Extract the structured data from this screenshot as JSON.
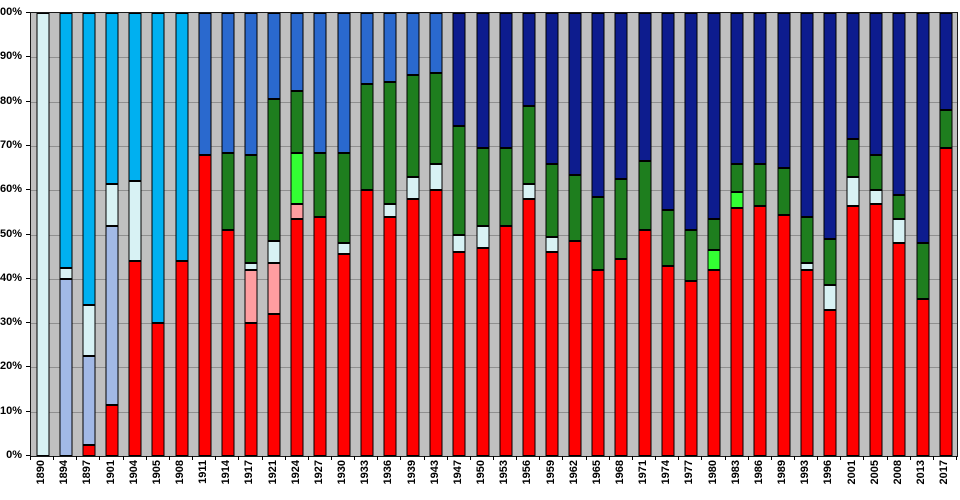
{
  "chart_data": {
    "type": "bar",
    "variant": "100%-stacked-column",
    "title": "",
    "xlabel": "",
    "ylabel": "",
    "ylim": [
      0,
      100
    ],
    "ytick_step": 10,
    "ytick_labels": [
      "0%",
      "10%",
      "20%",
      "30%",
      "40%",
      "50%",
      "60%",
      "70%",
      "80%",
      "90%",
      "100%"
    ],
    "grid": true,
    "legend": "none",
    "plot_bg": "#C0C0C0",
    "gridline_color": "#8f8f8f",
    "axis_color": "#1a1a1a",
    "palette": {
      "red": "#FF0000",
      "pink": "#FF9DA0",
      "light_blue": "#A2B9E6",
      "pale_cyan": "#D8F2F4",
      "cyan": "#00B0F0",
      "medium_blue": "#2A69CE",
      "dark_blue": "#0D1C8E",
      "green": "#1E7E1E",
      "bright_green": "#33FF33"
    },
    "categories": [
      "1890",
      "1894",
      "1897",
      "1901",
      "1904",
      "1905",
      "1908",
      "1911",
      "1914",
      "1917",
      "1921",
      "1924",
      "1927",
      "1930",
      "1933",
      "1936",
      "1939",
      "1943",
      "1947",
      "1950",
      "1953",
      "1956",
      "1959",
      "1962",
      "1965",
      "1968",
      "1971",
      "1974",
      "1977",
      "1980",
      "1983",
      "1986",
      "1989",
      "1993",
      "1996",
      "2001",
      "2005",
      "2008",
      "2013",
      "2017"
    ],
    "bars": [
      {
        "year": "1890",
        "segments": [
          [
            "pale_cyan",
            100
          ]
        ]
      },
      {
        "year": "1894",
        "segments": [
          [
            "light_blue",
            40
          ],
          [
            "pale_cyan",
            2.5
          ],
          [
            "cyan",
            57.5
          ]
        ]
      },
      {
        "year": "1897",
        "segments": [
          [
            "red",
            2.5
          ],
          [
            "light_blue",
            20
          ],
          [
            "pale_cyan",
            11.5
          ],
          [
            "cyan",
            66
          ]
        ]
      },
      {
        "year": "1901",
        "segments": [
          [
            "red",
            11.5
          ],
          [
            "light_blue",
            40.5
          ],
          [
            "pale_cyan",
            9.5
          ],
          [
            "cyan",
            38.5
          ]
        ]
      },
      {
        "year": "1904",
        "segments": [
          [
            "red",
            44
          ],
          [
            "pale_cyan",
            18
          ],
          [
            "cyan",
            38
          ]
        ]
      },
      {
        "year": "1905",
        "segments": [
          [
            "red",
            30
          ],
          [
            "cyan",
            70
          ]
        ]
      },
      {
        "year": "1908",
        "segments": [
          [
            "red",
            44
          ],
          [
            "cyan",
            56
          ]
        ]
      },
      {
        "year": "1911",
        "segments": [
          [
            "red",
            68
          ],
          [
            "medium_blue",
            32
          ]
        ]
      },
      {
        "year": "1914",
        "segments": [
          [
            "red",
            51
          ],
          [
            "green",
            17.5
          ],
          [
            "medium_blue",
            31.5
          ]
        ]
      },
      {
        "year": "1917",
        "segments": [
          [
            "red",
            30
          ],
          [
            "pink",
            12
          ],
          [
            "pale_cyan",
            1.5
          ],
          [
            "green",
            24.5
          ],
          [
            "medium_blue",
            32
          ]
        ]
      },
      {
        "year": "1921",
        "segments": [
          [
            "red",
            32
          ],
          [
            "pink",
            11.5
          ],
          [
            "pale_cyan",
            5
          ],
          [
            "green",
            32
          ],
          [
            "medium_blue",
            19.5
          ]
        ]
      },
      {
        "year": "1924",
        "segments": [
          [
            "red",
            53.5
          ],
          [
            "pink",
            3.5
          ],
          [
            "bright_green",
            11.5
          ],
          [
            "green",
            14
          ],
          [
            "medium_blue",
            17.5
          ]
        ]
      },
      {
        "year": "1927",
        "segments": [
          [
            "red",
            54
          ],
          [
            "green",
            14.5
          ],
          [
            "medium_blue",
            31.5
          ]
        ]
      },
      {
        "year": "1930",
        "segments": [
          [
            "red",
            45.5
          ],
          [
            "pale_cyan",
            2.5
          ],
          [
            "green",
            20.5
          ],
          [
            "medium_blue",
            31.5
          ]
        ]
      },
      {
        "year": "1933",
        "segments": [
          [
            "red",
            60
          ],
          [
            "green",
            24
          ],
          [
            "medium_blue",
            16
          ]
        ]
      },
      {
        "year": "1936",
        "segments": [
          [
            "red",
            54
          ],
          [
            "pale_cyan",
            3
          ],
          [
            "green",
            27.5
          ],
          [
            "medium_blue",
            15.5
          ]
        ]
      },
      {
        "year": "1939",
        "segments": [
          [
            "red",
            58
          ],
          [
            "pale_cyan",
            5
          ],
          [
            "green",
            23
          ],
          [
            "medium_blue",
            14
          ]
        ]
      },
      {
        "year": "1943",
        "segments": [
          [
            "red",
            60
          ],
          [
            "pale_cyan",
            6
          ],
          [
            "green",
            20.5
          ],
          [
            "medium_blue",
            13.5
          ]
        ]
      },
      {
        "year": "1947",
        "segments": [
          [
            "red",
            46
          ],
          [
            "pale_cyan",
            4
          ],
          [
            "green",
            24.5
          ],
          [
            "dark_blue",
            25.5
          ]
        ]
      },
      {
        "year": "1950",
        "segments": [
          [
            "red",
            47
          ],
          [
            "pale_cyan",
            5
          ],
          [
            "green",
            17.5
          ],
          [
            "dark_blue",
            30.5
          ]
        ]
      },
      {
        "year": "1953",
        "segments": [
          [
            "red",
            52
          ],
          [
            "green",
            17.5
          ],
          [
            "dark_blue",
            30.5
          ]
        ]
      },
      {
        "year": "1956",
        "segments": [
          [
            "red",
            58
          ],
          [
            "pale_cyan",
            3.5
          ],
          [
            "green",
            17.5
          ],
          [
            "dark_blue",
            21
          ]
        ]
      },
      {
        "year": "1959",
        "segments": [
          [
            "red",
            46
          ],
          [
            "pale_cyan",
            3.5
          ],
          [
            "green",
            16.5
          ],
          [
            "dark_blue",
            34
          ]
        ]
      },
      {
        "year": "1962",
        "segments": [
          [
            "red",
            48.5
          ],
          [
            "green",
            15
          ],
          [
            "dark_blue",
            36.5
          ]
        ]
      },
      {
        "year": "1965",
        "segments": [
          [
            "red",
            42
          ],
          [
            "green",
            16.5
          ],
          [
            "dark_blue",
            41.5
          ]
        ]
      },
      {
        "year": "1968",
        "segments": [
          [
            "red",
            44.5
          ],
          [
            "green",
            18
          ],
          [
            "dark_blue",
            37.5
          ]
        ]
      },
      {
        "year": "1971",
        "segments": [
          [
            "red",
            51
          ],
          [
            "green",
            15.5
          ],
          [
            "dark_blue",
            33.5
          ]
        ]
      },
      {
        "year": "1974",
        "segments": [
          [
            "red",
            43
          ],
          [
            "green",
            12.5
          ],
          [
            "dark_blue",
            44.5
          ]
        ]
      },
      {
        "year": "1977",
        "segments": [
          [
            "red",
            39.5
          ],
          [
            "green",
            11.5
          ],
          [
            "dark_blue",
            49
          ]
        ]
      },
      {
        "year": "1980",
        "segments": [
          [
            "red",
            42
          ],
          [
            "bright_green",
            4.5
          ],
          [
            "green",
            7
          ],
          [
            "dark_blue",
            46.5
          ]
        ]
      },
      {
        "year": "1983",
        "segments": [
          [
            "red",
            56
          ],
          [
            "bright_green",
            3.5
          ],
          [
            "green",
            6.5
          ],
          [
            "dark_blue",
            34
          ]
        ]
      },
      {
        "year": "1986",
        "segments": [
          [
            "red",
            56.5
          ],
          [
            "green",
            9.5
          ],
          [
            "dark_blue",
            34
          ]
        ]
      },
      {
        "year": "1989",
        "segments": [
          [
            "red",
            54.5
          ],
          [
            "green",
            10.5
          ],
          [
            "dark_blue",
            35
          ]
        ]
      },
      {
        "year": "1993",
        "segments": [
          [
            "red",
            42
          ],
          [
            "pale_cyan",
            1.5
          ],
          [
            "green",
            10.5
          ],
          [
            "dark_blue",
            46
          ]
        ]
      },
      {
        "year": "1996",
        "segments": [
          [
            "red",
            33
          ],
          [
            "pale_cyan",
            5.5
          ],
          [
            "green",
            10.5
          ],
          [
            "dark_blue",
            51
          ]
        ]
      },
      {
        "year": "2001",
        "segments": [
          [
            "red",
            56.5
          ],
          [
            "pale_cyan",
            6.5
          ],
          [
            "green",
            8.5
          ],
          [
            "dark_blue",
            28.5
          ]
        ]
      },
      {
        "year": "2005",
        "segments": [
          [
            "red",
            57
          ],
          [
            "pale_cyan",
            3
          ],
          [
            "green",
            8
          ],
          [
            "dark_blue",
            32
          ]
        ]
      },
      {
        "year": "2008",
        "segments": [
          [
            "red",
            48
          ],
          [
            "pale_cyan",
            5.5
          ],
          [
            "green",
            5.5
          ],
          [
            "dark_blue",
            41
          ]
        ]
      },
      {
        "year": "2013",
        "segments": [
          [
            "red",
            35.5
          ],
          [
            "green",
            12.5
          ],
          [
            "dark_blue",
            52
          ]
        ]
      },
      {
        "year": "2017",
        "segments": [
          [
            "red",
            69.5
          ],
          [
            "green",
            8.5
          ],
          [
            "dark_blue",
            22
          ]
        ]
      }
    ]
  }
}
